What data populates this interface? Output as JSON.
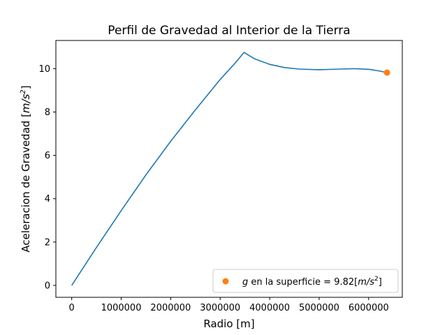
{
  "chart_data": {
    "type": "line",
    "title": "Perfil de Gravedad al Interior de la Tierra",
    "xlabel": "Radio [m]",
    "ylabel_prefix": "Aceleracion de Gravedad [",
    "ylabel_unit": "m/s",
    "ylabel_exp": "2",
    "ylabel_suffix": "]",
    "xlim": [
      -320000,
      6680000
    ],
    "ylim": [
      -0.55,
      11.3
    ],
    "xticks": [
      0,
      1000000,
      2000000,
      3000000,
      4000000,
      5000000,
      6000000
    ],
    "xtick_labels": [
      "0",
      "1000000",
      "2000000",
      "3000000",
      "4000000",
      "5000000",
      "6000000"
    ],
    "yticks": [
      0,
      2,
      4,
      6,
      8,
      10
    ],
    "ytick_labels": [
      "0",
      "2",
      "4",
      "6",
      "8",
      "10"
    ],
    "grid": false,
    "legend_position": "lower-right",
    "series": [
      {
        "color": "#1f77b4",
        "x": [
          0,
          500000,
          1000000,
          1500000,
          2000000,
          2500000,
          3000000,
          3300000,
          3480000,
          3700000,
          4000000,
          4300000,
          4600000,
          5000000,
          5400000,
          5700000,
          6000000,
          6200000,
          6371000
        ],
        "y": [
          0,
          1.75,
          3.45,
          5.1,
          6.65,
          8.1,
          9.5,
          10.25,
          10.75,
          10.45,
          10.2,
          10.05,
          9.98,
          9.95,
          9.98,
          10.0,
          9.97,
          9.9,
          9.82
        ]
      }
    ],
    "marker": {
      "color": "#ff7f0e",
      "x": 6371000,
      "y": 9.82,
      "legend_prefix": "g",
      "legend_middle": " en la superficie = 9.82[",
      "legend_unit": "m/s",
      "legend_exp": "2",
      "legend_suffix": "]"
    }
  }
}
